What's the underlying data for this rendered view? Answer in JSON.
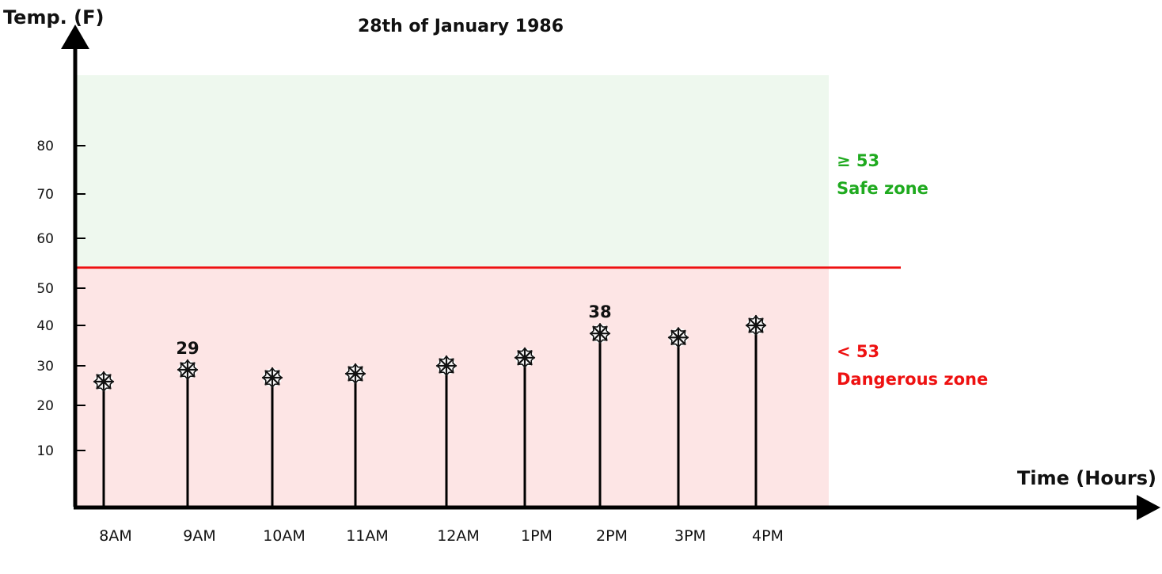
{
  "chart_data": {
    "type": "scatter",
    "title": "28th of January 1986",
    "xlabel": "Time (Hours)",
    "ylabel": "Temp. (F)",
    "categories": [
      "8AM",
      "9AM",
      "10AM",
      "11AM",
      "12AM",
      "1PM",
      "2PM",
      "3PM",
      "4PM"
    ],
    "values": [
      26,
      29,
      27,
      28,
      30,
      32,
      38,
      37,
      40
    ],
    "y_ticks": [
      10,
      20,
      30,
      40,
      50,
      60,
      70,
      80
    ],
    "ylim": [
      0,
      90
    ],
    "threshold": 53,
    "grid": false,
    "data_labels": [
      {
        "category": "9AM",
        "text": "29"
      },
      {
        "category": "2PM",
        "text": "38"
      }
    ],
    "zones": {
      "safe": {
        "value_text": "≥ 53",
        "label": "Safe zone",
        "color": "#1faa1f",
        "fill": "#eef8ee"
      },
      "danger": {
        "value_text": "< 53",
        "label": "Dangerous zone",
        "color": "#ee1111",
        "fill": "#fde5e5"
      }
    },
    "marker_icon": "snowflake-icon",
    "threshold_color": "#ee1111"
  }
}
